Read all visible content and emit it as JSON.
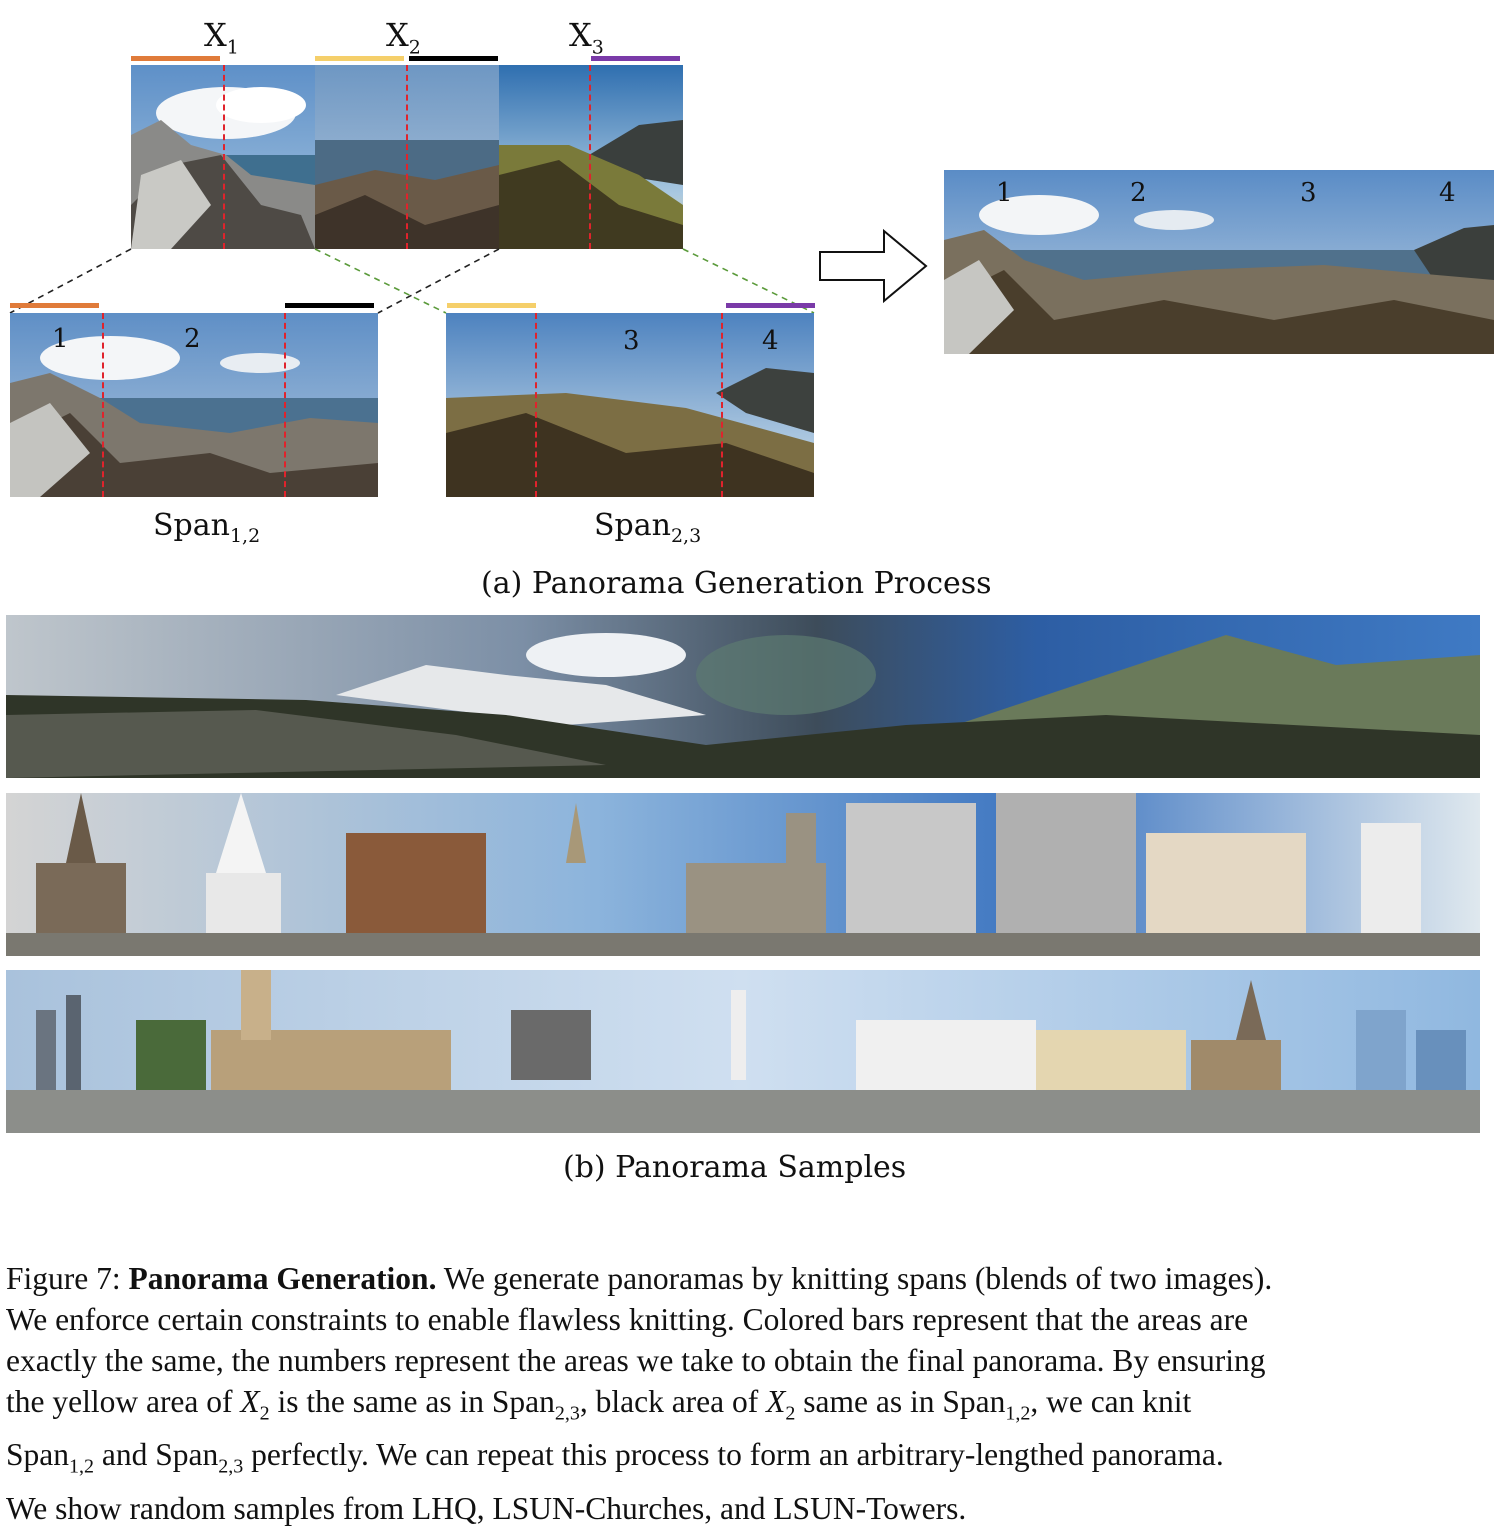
{
  "colors": {
    "orange_bar": "#e07b3a",
    "yellow_bar": "#f5cf6a",
    "black_bar": "#000000",
    "purple_bar": "#7a3aa8",
    "seam_line": "#e0232c"
  },
  "top_labels": [
    {
      "base": "X",
      "sub": "1"
    },
    {
      "base": "X",
      "sub": "2"
    },
    {
      "base": "X",
      "sub": "3"
    }
  ],
  "area_numbers": [
    "1",
    "2",
    "3",
    "4"
  ],
  "span_labels": [
    {
      "base": "Span",
      "sub": "1,2"
    },
    {
      "base": "Span",
      "sub": "2,3"
    }
  ],
  "subcaption_a": "(a) Panorama Generation Process",
  "subcaption_b": "(b) Panorama Samples",
  "arrow_icon": "right-arrow-icon",
  "caption": {
    "figure_label": "Figure 7:",
    "title": "Panorama Generation.",
    "line1_rest": "We generate panoramas by knitting spans (blends of two images).",
    "line2": "We enforce certain constraints to enable flawless knitting. Colored bars represent that the areas are",
    "line3": "exactly the same, the numbers represent the areas we take to obtain the final panorama. By ensuring",
    "line4_a": "the yellow area of",
    "line4_var1": "X",
    "line4_var1_sub": "2",
    "line4_b": "is the same as in Span",
    "line4_sub1": "2,3",
    "line4_c": ", black area of",
    "line4_var2": "X",
    "line4_var2_sub": "2",
    "line4_d": "same as in Span",
    "line4_sub2": "1,2",
    "line4_e": ", we can knit",
    "line5_a": "Span",
    "line5_sub1": "1,2",
    "line5_b": "and Span",
    "line5_sub2": "2,3",
    "line5_c": "perfectly. We can repeat this process to form an arbitrary-lengthed panorama.",
    "line6": "We show random samples from LHQ, LSUN-Churches, and LSUN-Towers."
  }
}
